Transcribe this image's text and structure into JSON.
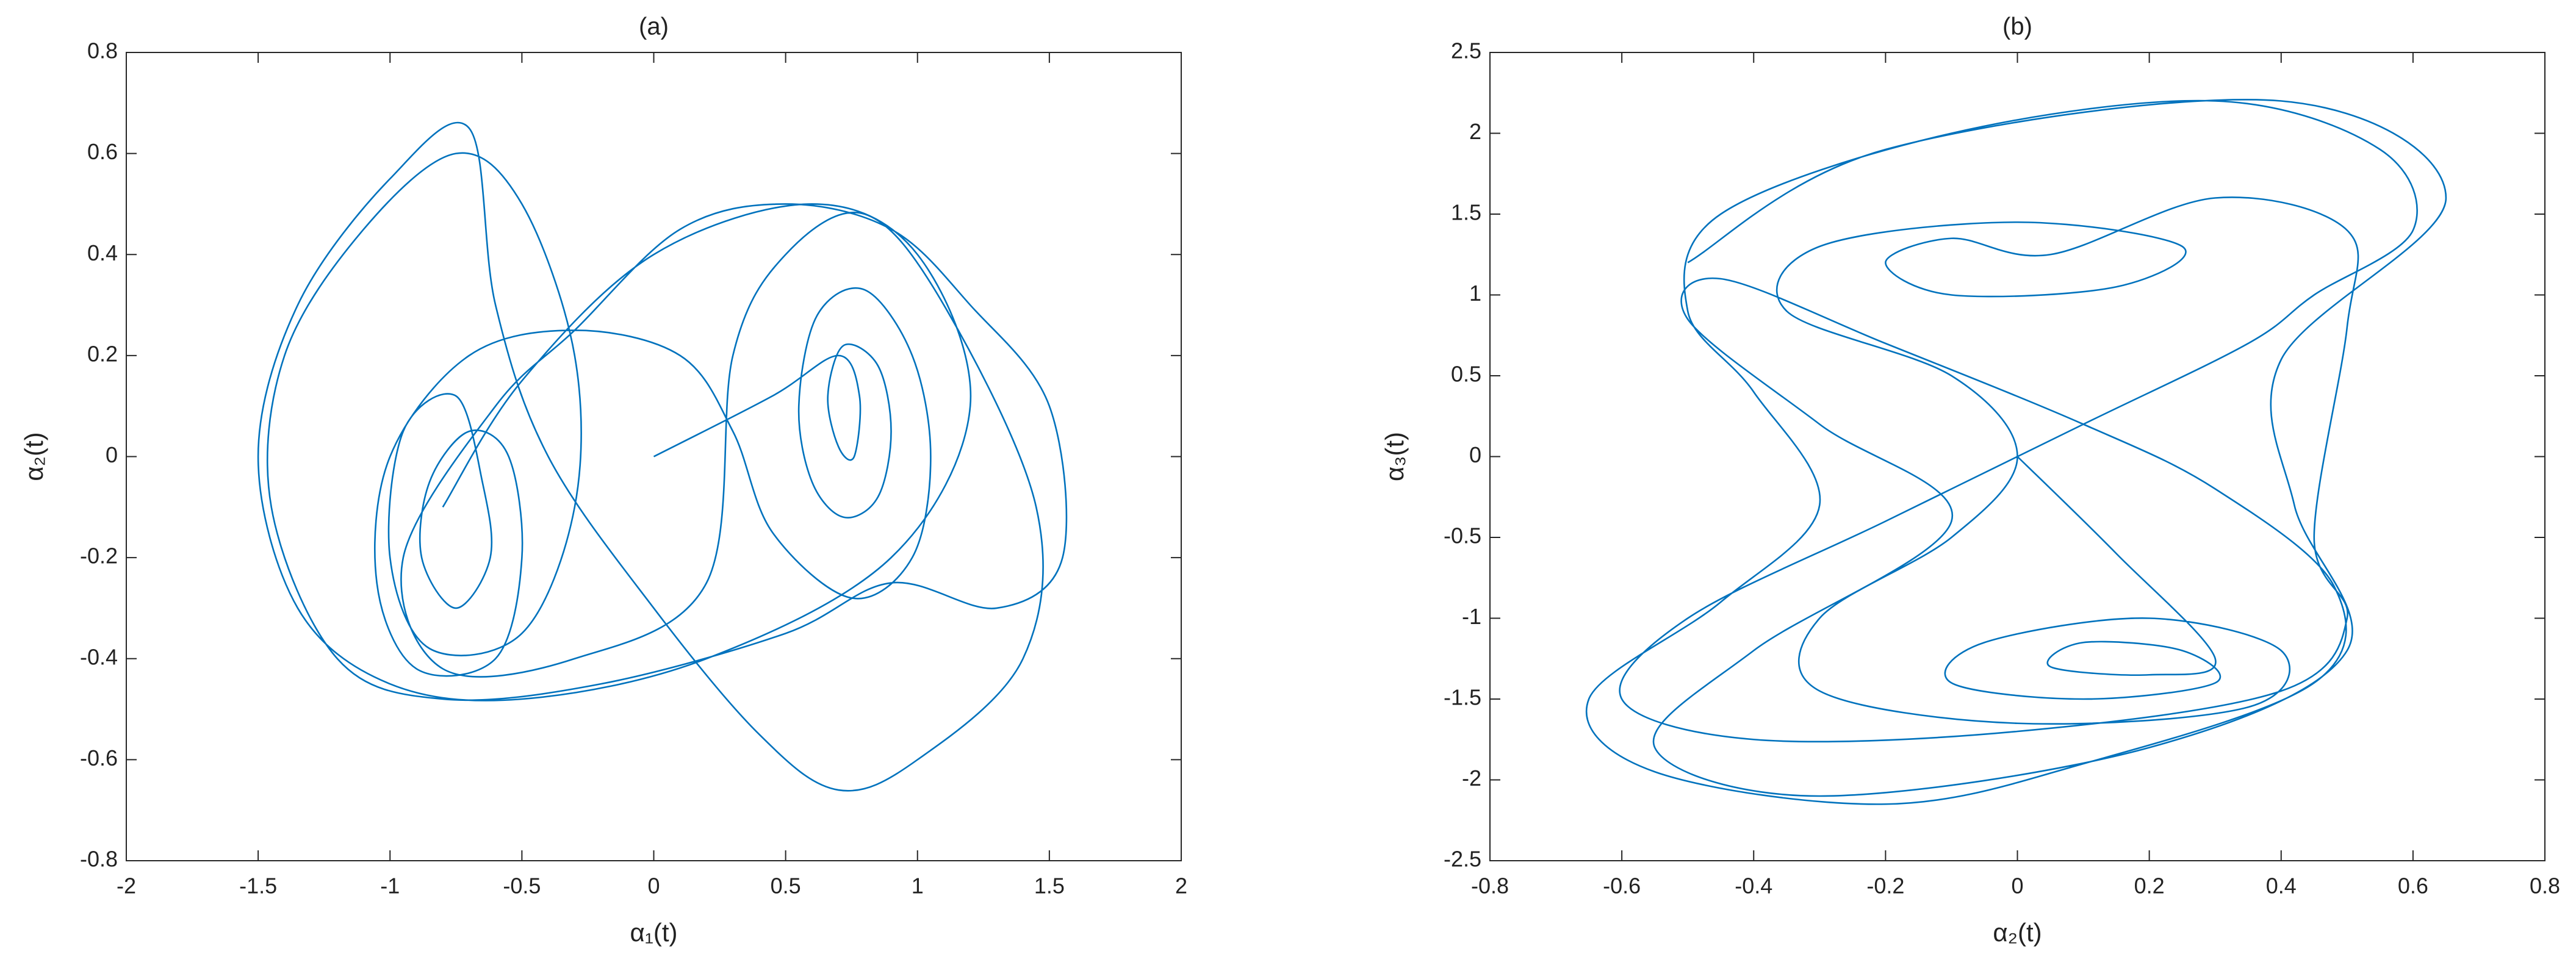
{
  "chart_data": [
    {
      "type": "line",
      "title": "(a)",
      "xlabel": "α₁(t)",
      "ylabel": "α₂(t)",
      "color": "#0072bd",
      "xlim": [
        -2,
        2
      ],
      "ylim": [
        -0.8,
        0.8
      ],
      "xticks": [
        -2,
        -1.5,
        -1,
        -0.5,
        0,
        0.5,
        1,
        1.5,
        2
      ],
      "yticks": [
        -0.8,
        -0.6,
        -0.4,
        -0.2,
        0,
        0.2,
        0.4,
        0.6,
        0.8
      ],
      "x": [
        0,
        0.45,
        0.7,
        0.78,
        0.76,
        0.7,
        0.66,
        0.72,
        0.85,
        0.9,
        0.85,
        0.72,
        0.6,
        0.55,
        0.62,
        0.8,
        0.98,
        1.05,
        0.98,
        0.75,
        0.45,
        0.3,
        0.1,
        -0.3,
        -0.7,
        -1.0,
        -1.05,
        -0.9,
        -0.6,
        -0.5,
        -0.55,
        -0.7,
        -0.85,
        -0.88,
        -0.75,
        -0.62,
        -0.65,
        -0.75,
        -0.95,
        -1.0,
        -0.85,
        -0.5,
        -0.3,
        -0.3,
        -0.5,
        -0.75,
        -1.1,
        -1.4,
        -1.45,
        -1.2,
        -0.8,
        -0.2,
        0.5,
        0.9,
        1.3,
        1.55,
        1.5,
        1.2,
        0.9,
        0.5,
        0.1,
        -0.3,
        -0.6,
        -0.95,
        -0.8,
        -0.3,
        0.2,
        0.3,
        0.5,
        0.8,
        1.1,
        1.45,
        1.4,
        1.0,
        0.7,
        0.4,
        0.0,
        -0.4,
        -0.6,
        -0.7,
        -1.0,
        -1.35,
        -1.5,
        -1.35,
        -1.0,
        -0.5,
        0.2,
        0.9,
        1.2,
        1.0,
        0.6,
        0.0,
        -0.5,
        -0.8
      ],
      "values": [
        0,
        0.12,
        0.2,
        0.12,
        0.0,
        0.02,
        0.12,
        0.22,
        0.18,
        0.05,
        -0.08,
        -0.12,
        -0.05,
        0.1,
        0.28,
        0.33,
        0.2,
        0.0,
        -0.2,
        -0.28,
        -0.15,
        0.05,
        0.2,
        0.25,
        0.2,
        0.0,
        -0.25,
        -0.42,
        -0.4,
        -0.2,
        0.0,
        0.05,
        -0.05,
        -0.2,
        -0.3,
        -0.2,
        -0.05,
        0.12,
        0.05,
        -0.2,
        -0.38,
        -0.35,
        -0.1,
        0.2,
        0.5,
        0.6,
        0.45,
        0.2,
        -0.1,
        -0.4,
        -0.48,
        -0.45,
        -0.35,
        -0.25,
        -0.3,
        -0.2,
        0.1,
        0.3,
        0.45,
        0.5,
        0.45,
        0.25,
        0.1,
        -0.2,
        -0.42,
        -0.4,
        -0.25,
        0.2,
        0.4,
        0.48,
        0.3,
        -0.1,
        -0.4,
        -0.6,
        -0.66,
        -0.55,
        -0.3,
        0.0,
        0.3,
        0.65,
        0.55,
        0.3,
        0.0,
        -0.3,
        -0.45,
        -0.48,
        -0.4,
        -0.2,
        0.1,
        0.4,
        0.5,
        0.4,
        0.15,
        -0.1
      ]
    },
    {
      "type": "line",
      "title": "(b)",
      "xlabel": "α₂(t)",
      "ylabel": "α₃(t)",
      "color": "#0072bd",
      "xlim": [
        -0.8,
        0.8
      ],
      "ylim": [
        -2.5,
        2.5
      ],
      "xticks": [
        -0.8,
        -0.6,
        -0.4,
        -0.2,
        0,
        0.2,
        0.4,
        0.6,
        0.8
      ],
      "yticks": [
        -2.5,
        -2,
        -1.5,
        -1,
        -0.5,
        0,
        0.5,
        1,
        1.5,
        2,
        2.5
      ],
      "x": [
        0,
        0.15,
        0.3,
        0.2,
        0.05,
        0.1,
        0.25,
        0.3,
        0.1,
        -0.1,
        -0.05,
        0.2,
        0.4,
        0.35,
        0.0,
        -0.3,
        -0.3,
        -0.1,
        0.0,
        -0.1,
        -0.35,
        -0.3,
        0.0,
        0.25,
        0.15,
        -0.1,
        -0.2,
        -0.1,
        0.05,
        0.3,
        0.5,
        0.5,
        0.45,
        0.5,
        0.4,
        0.0,
        -0.4,
        -0.6,
        -0.5,
        -0.2,
        0.1,
        0.35,
        0.45,
        0.6,
        0.55,
        0.3,
        -0.1,
        -0.45,
        -0.5,
        -0.4,
        -0.3,
        -0.45,
        -0.65,
        -0.55,
        -0.2,
        0.1,
        0.45,
        0.48,
        0.3,
        0.1,
        -0.2,
        -0.45,
        -0.5,
        -0.3,
        -0.1,
        -0.4,
        -0.55,
        -0.3,
        0.2,
        0.5,
        0.42,
        0.4,
        0.65,
        0.4,
        -0.2,
        -0.5
      ],
      "values": [
        0,
        -0.6,
        -1.25,
        -1.35,
        -1.3,
        -1.15,
        -1.2,
        -1.4,
        -1.5,
        -1.4,
        -1.15,
        -1.0,
        -1.2,
        -1.55,
        -1.65,
        -1.45,
        -1.0,
        -0.5,
        0.0,
        0.5,
        0.9,
        1.3,
        1.45,
        1.3,
        1.05,
        1.0,
        1.2,
        1.35,
        1.25,
        1.6,
        1.4,
        0.8,
        -0.5,
        -1.0,
        -1.45,
        -1.7,
        -1.75,
        -1.5,
        -1.0,
        -0.4,
        0.2,
        0.7,
        1.0,
        1.4,
        1.9,
        2.2,
        2.0,
        1.5,
        0.9,
        0.4,
        -0.3,
        -0.9,
        -1.5,
        -1.95,
        -2.15,
        -1.9,
        -1.4,
        -0.8,
        -0.2,
        0.2,
        0.7,
        1.1,
        0.85,
        0.2,
        -0.4,
        -1.2,
        -1.8,
        -2.1,
        -1.8,
        -1.2,
        -0.3,
        0.6,
        1.6,
        2.2,
        1.9,
        1.2
      ]
    }
  ]
}
